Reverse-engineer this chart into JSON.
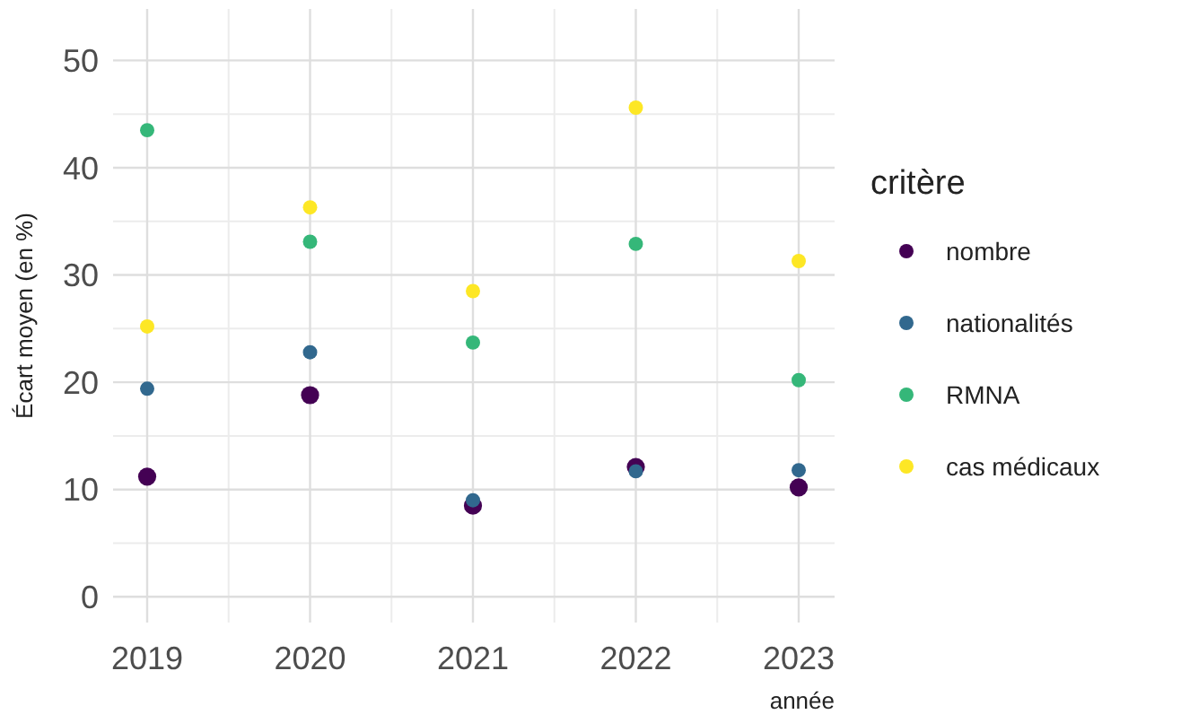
{
  "chart_data": {
    "type": "scatter",
    "xlabel": "année",
    "ylabel": "Écart moyen (en %)",
    "legend_title": "critère",
    "categories": [
      "2019",
      "2020",
      "2021",
      "2022",
      "2023"
    ],
    "series": [
      {
        "name": "nombre",
        "color": "#440154",
        "values": [
          11.2,
          18.8,
          8.5,
          12.1,
          10.2
        ]
      },
      {
        "name": "nationalités",
        "color": "#31688e",
        "values": [
          19.4,
          22.8,
          9.0,
          11.7,
          11.8
        ]
      },
      {
        "name": "RMNA",
        "color": "#35b779",
        "values": [
          43.5,
          33.1,
          23.7,
          32.9,
          20.2
        ]
      },
      {
        "name": "cas médicaux",
        "color": "#fde725",
        "values": [
          25.2,
          36.3,
          28.5,
          45.6,
          31.3
        ]
      }
    ],
    "ylim": [
      -2.4,
      54.8
    ],
    "yticks": [
      0,
      10,
      20,
      30,
      40,
      50
    ],
    "grid": true,
    "legend": "right",
    "marker": "circle"
  }
}
